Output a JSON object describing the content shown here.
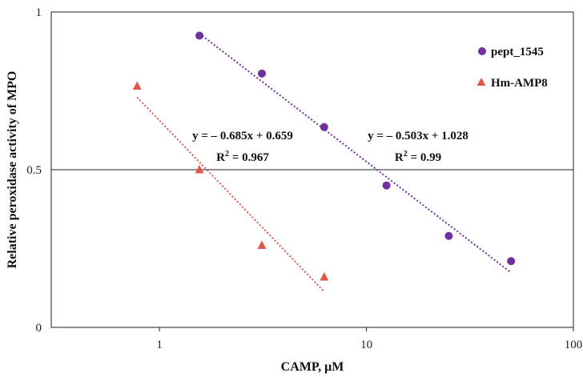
{
  "chart_data": {
    "type": "scatter",
    "xscale": "log",
    "xlim": [
      0.3,
      100
    ],
    "ylim": [
      0,
      1
    ],
    "xticks": [
      {
        "value": 1,
        "label": "1"
      },
      {
        "value": 10,
        "label": "10"
      },
      {
        "value": 100,
        "label": "100"
      }
    ],
    "yticks": [
      {
        "value": 0,
        "label": "0"
      },
      {
        "value": 0.5,
        "label": "0.5"
      },
      {
        "value": 1,
        "label": "1"
      }
    ],
    "reference_line_y": 0.5,
    "xlabel": "CAMP, μM",
    "ylabel": "Relative peroxidase activity of MPO",
    "legend_position": "right",
    "series": [
      {
        "name": "pept_1545",
        "marker": "circle",
        "color": "#7030A0",
        "x": [
          1.56,
          3.125,
          6.25,
          12.5,
          25,
          50
        ],
        "y": [
          0.925,
          0.805,
          0.635,
          0.45,
          0.29,
          0.21
        ],
        "trendline": {
          "x_range": [
            1.56,
            50
          ],
          "equation": "y = – 0.503x + 1.028",
          "r2_prefix": "R",
          "r2_sup": "2",
          "r2_value": " = 0.99"
        }
      },
      {
        "name": "Hm-AMP8",
        "marker": "triangle",
        "color": "#E0564A",
        "x": [
          0.78,
          1.56,
          3.125,
          6.25
        ],
        "y": [
          0.765,
          0.5,
          0.26,
          0.16
        ],
        "trendline": {
          "x_range": [
            0.78,
            6.25
          ],
          "equation": "y = – 0.685x + 0.659",
          "r2_prefix": "R",
          "r2_sup": "2",
          "r2_value": " = 0.967"
        }
      }
    ]
  }
}
